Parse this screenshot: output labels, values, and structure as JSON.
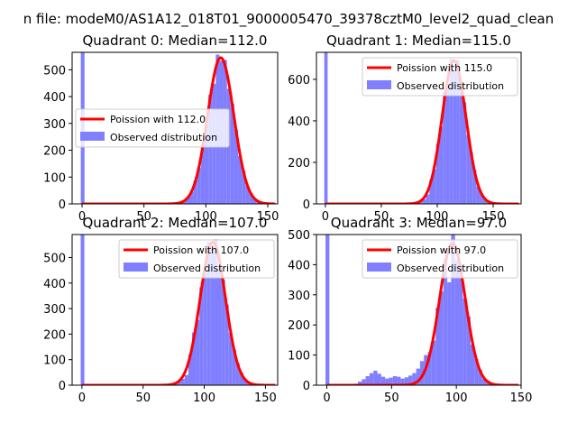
{
  "figure": {
    "suptitle": "n file: modeM0/AS1A12_018T01_9000005470_39378cztM0_level2_quad_clean"
  },
  "colors": {
    "histogram": "#7f7fff",
    "fit_line": "#ff0000",
    "axes": "#000000",
    "background": "#ffffff"
  },
  "chart_data": [
    {
      "type": "bar",
      "title": "Quadrant 0: Median=112.0",
      "xlim": [
        -8,
        158
      ],
      "ylim": [
        0,
        565
      ],
      "xticks": [
        0,
        50,
        100,
        150
      ],
      "yticks": [
        0,
        100,
        200,
        300,
        400,
        500
      ],
      "legend": {
        "placement": "center-left",
        "fit_label": "Poission with 112.0",
        "hist_label": "Observed distribution"
      },
      "median": 112,
      "bin_width": 3,
      "zero_spike": 565,
      "low_tail": [
        [
          63,
          1
        ],
        [
          66,
          2
        ],
        [
          69,
          3
        ],
        [
          72,
          5
        ],
        [
          75,
          6
        ],
        [
          78,
          8
        ],
        [
          81,
          12
        ]
      ],
      "fit_peak": 545,
      "fit_sigma": 10.6,
      "hist_noise": [
        0.02,
        -0.05,
        0.04,
        -0.03,
        0.06,
        -0.04,
        0.03,
        -0.06,
        0.05,
        -0.02,
        0.04,
        -0.05,
        0.02
      ]
    },
    {
      "type": "bar",
      "title": "Quadrant 1: Median=115.0",
      "xlim": [
        -8,
        175
      ],
      "ylim": [
        0,
        730
      ],
      "xticks": [
        0,
        50,
        100,
        150
      ],
      "yticks": [
        0,
        200,
        400,
        600
      ],
      "legend": {
        "placement": "top-right",
        "fit_label": "Poission with 115.0",
        "hist_label": "Observed distribution"
      },
      "median": 115,
      "bin_width": 3,
      "zero_spike": 730,
      "low_tail": [
        [
          78,
          4
        ],
        [
          81,
          8
        ],
        [
          84,
          15
        ],
        [
          87,
          22
        ],
        [
          90,
          45
        ]
      ],
      "fit_peak": 690,
      "fit_sigma": 10.7,
      "hist_noise": [
        0.06,
        -0.08,
        0.05,
        -0.04,
        0.07,
        -0.06,
        0.04,
        -0.07,
        0.06,
        -0.03,
        0.05,
        -0.05,
        0.03
      ]
    },
    {
      "type": "bar",
      "title": "Quadrant 2: Median=107.0",
      "xlim": [
        -8,
        160
      ],
      "ylim": [
        0,
        590
      ],
      "xticks": [
        0,
        50,
        100,
        150
      ],
      "yticks": [
        0,
        100,
        200,
        300,
        400,
        500
      ],
      "legend": {
        "placement": "top-right",
        "fit_label": "Poission with 107.0",
        "hist_label": "Observed distribution"
      },
      "median": 107,
      "bin_width": 3,
      "zero_spike": 590,
      "low_tail": [
        [
          63,
          2
        ],
        [
          66,
          3
        ],
        [
          69,
          4
        ],
        [
          72,
          8
        ],
        [
          75,
          12
        ],
        [
          78,
          18
        ],
        [
          81,
          25
        ],
        [
          84,
          40
        ]
      ],
      "fit_peak": 560,
      "fit_sigma": 10.4,
      "hist_noise": [
        0.05,
        0.12,
        -0.06,
        0.04,
        -0.05,
        0.06,
        -0.04,
        0.05,
        -0.06,
        0.03,
        0.04,
        -0.03,
        0.02
      ]
    },
    {
      "type": "bar",
      "title": "Quadrant 3: Median=97.0",
      "xlim": [
        -8,
        150
      ],
      "ylim": [
        0,
        500
      ],
      "xticks": [
        0,
        50,
        100,
        150
      ],
      "yticks": [
        0,
        100,
        200,
        300,
        400,
        500
      ],
      "legend": {
        "placement": "top-right",
        "fit_label": "Poission with 97.0",
        "hist_label": "Observed distribution"
      },
      "median": 97,
      "bin_width": 3,
      "zero_spike": 500,
      "low_tail": [
        [
          21,
          5
        ],
        [
          24,
          12
        ],
        [
          27,
          20
        ],
        [
          30,
          30
        ],
        [
          33,
          40
        ],
        [
          36,
          48
        ],
        [
          39,
          38
        ],
        [
          42,
          28
        ],
        [
          45,
          22
        ],
        [
          48,
          25
        ],
        [
          51,
          30
        ],
        [
          54,
          28
        ],
        [
          57,
          22
        ],
        [
          60,
          26
        ],
        [
          63,
          32
        ],
        [
          66,
          40
        ],
        [
          69,
          55
        ],
        [
          72,
          80
        ],
        [
          75,
          100
        ]
      ],
      "fit_peak": 470,
      "fit_sigma": 10.0,
      "hist_noise": [
        0.08,
        -0.1,
        0.06,
        -0.05,
        0.04,
        -0.25,
        0.1,
        -0.06,
        0.05,
        -0.04,
        0.06,
        -0.05,
        0.03
      ]
    }
  ]
}
